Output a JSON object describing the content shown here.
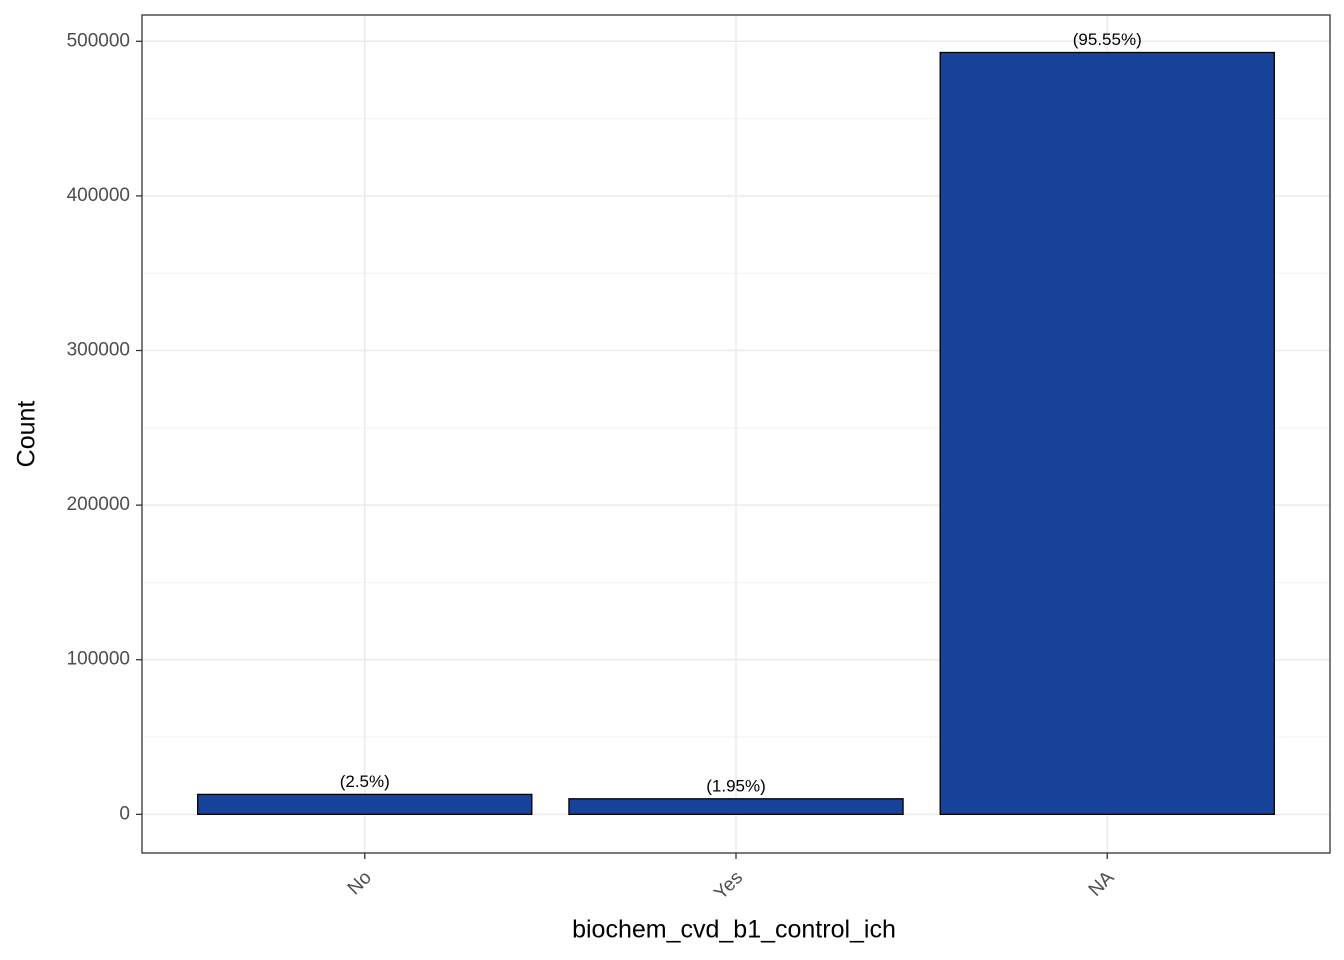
{
  "chart_data": {
    "type": "bar",
    "categories": [
      "No",
      "Yes",
      "NA"
    ],
    "values": [
      12890,
      10060,
      492750
    ],
    "color": "#17449a",
    "percentages": {
      "values": [
        2.5,
        1.95,
        95.55
      ],
      "value_labels": [
        "(2.5%)",
        "(1.95%)",
        "(95.55%)"
      ]
    },
    "x_label": "biochem_cvd_b1_control_ich",
    "y_label": "Count",
    "ylim": [
      -25000,
      517000
    ],
    "yticks": [
      0,
      100000,
      200000,
      300000,
      400000,
      500000
    ],
    "minor_yticks": [
      50000,
      150000,
      250000,
      350000,
      450000
    ],
    "grid": true
  }
}
